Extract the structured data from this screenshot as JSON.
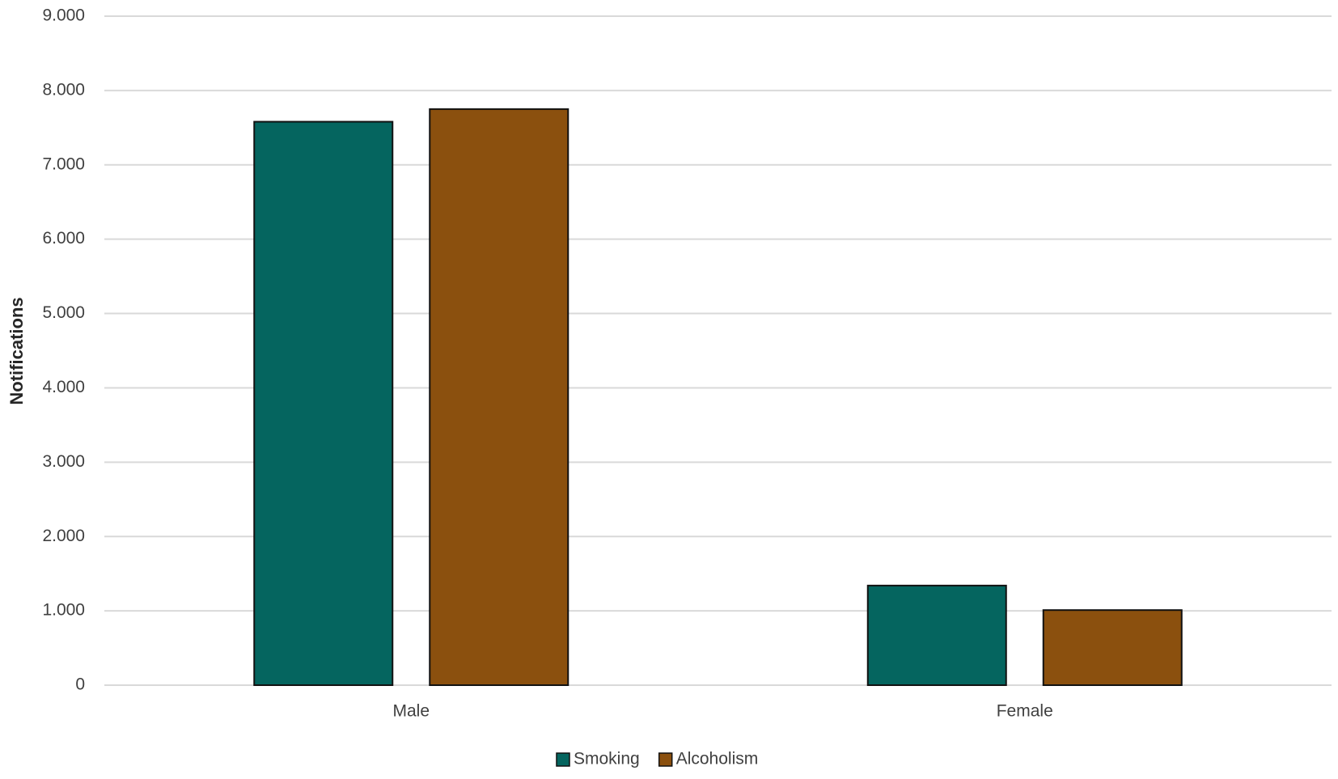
{
  "chart_data": {
    "type": "bar",
    "y_label": "Notifications",
    "categories": [
      "Male",
      "Female"
    ],
    "series": [
      {
        "name": "Smoking",
        "color": "#05655f",
        "values": [
          7580,
          1340
        ]
      },
      {
        "name": "Alcoholism",
        "color": "#8b500e",
        "values": [
          7750,
          1010
        ]
      }
    ],
    "ylim": [
      0,
      9000
    ],
    "yticks": [
      0,
      {
        "value": 1000,
        "label": "1.000"
      },
      {
        "value": 2000,
        "label": "2.000"
      },
      {
        "value": 3000,
        "label": "3.000"
      },
      {
        "value": 4000,
        "label": "4.000"
      },
      {
        "value": 5000,
        "label": "5.000"
      },
      {
        "value": 6000,
        "label": "6.000"
      },
      {
        "value": 7000,
        "label": "7.000"
      },
      {
        "value": 8000,
        "label": "8.000"
      },
      {
        "value": 9000,
        "label": "9.000"
      }
    ],
    "grid": true,
    "legend": "bottom"
  }
}
